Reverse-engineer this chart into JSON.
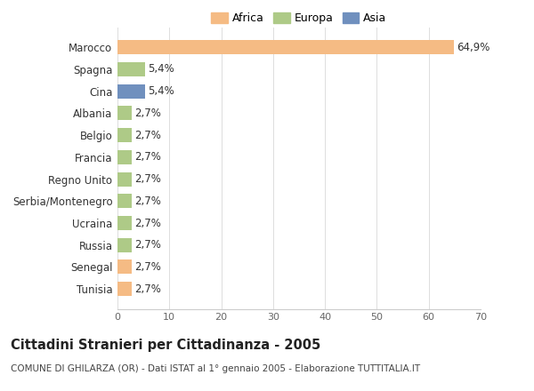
{
  "countries": [
    "Tunisia",
    "Senegal",
    "Russia",
    "Ucraina",
    "Serbia/Montenegro",
    "Regno Unito",
    "Francia",
    "Belgio",
    "Albania",
    "Cina",
    "Spagna",
    "Marocco"
  ],
  "values": [
    2.7,
    2.7,
    2.7,
    2.7,
    2.7,
    2.7,
    2.7,
    2.7,
    2.7,
    5.4,
    5.4,
    64.9
  ],
  "labels": [
    "2,7%",
    "2,7%",
    "2,7%",
    "2,7%",
    "2,7%",
    "2,7%",
    "2,7%",
    "2,7%",
    "2,7%",
    "5,4%",
    "5,4%",
    "64,9%"
  ],
  "continents": [
    "Africa",
    "Africa",
    "Europa",
    "Europa",
    "Europa",
    "Europa",
    "Europa",
    "Europa",
    "Europa",
    "Asia",
    "Europa",
    "Africa"
  ],
  "colors": {
    "Africa": "#F5BB84",
    "Europa": "#AECA87",
    "Asia": "#7090BE"
  },
  "legend_labels": [
    "Africa",
    "Europa",
    "Asia"
  ],
  "legend_colors": [
    "#F5BB84",
    "#AECA87",
    "#7090BE"
  ],
  "xlim": [
    0,
    70
  ],
  "xticks": [
    0,
    10,
    20,
    30,
    40,
    50,
    60,
    70
  ],
  "title": "Cittadini Stranieri per Cittadinanza - 2005",
  "subtitle": "COMUNE DI GHILARZA (OR) - Dati ISTAT al 1° gennaio 2005 - Elaborazione TUTTITALIA.IT",
  "bg_color": "#ffffff",
  "plot_bg_color": "#ffffff",
  "label_fontsize": 8.5,
  "tick_fontsize": 8,
  "title_fontsize": 10.5,
  "subtitle_fontsize": 7.5
}
